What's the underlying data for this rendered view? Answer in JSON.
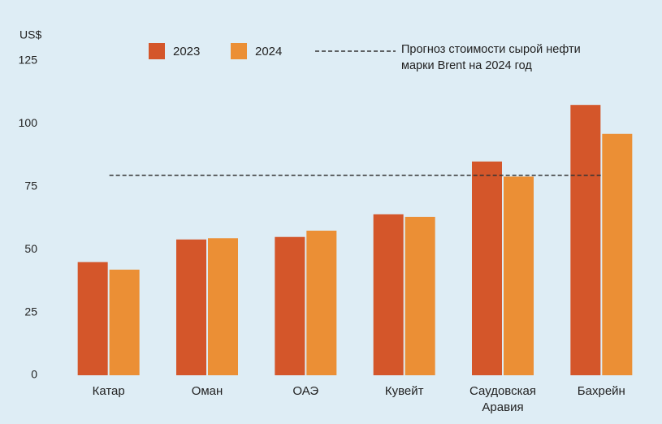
{
  "chart_data": {
    "type": "bar",
    "y_label": "US$",
    "categories": [
      "Катар",
      "Оман",
      "ОАЭ",
      "Кувейт",
      "Саудовская Аравия",
      "Бахрейн"
    ],
    "series": [
      {
        "name": "2023",
        "color": "#d4562a",
        "values": [
          45,
          54,
          55,
          64,
          85,
          107.5
        ]
      },
      {
        "name": "2024",
        "color": "#eb8f35",
        "values": [
          42,
          54.5,
          57.5,
          63,
          79,
          96
        ]
      }
    ],
    "reference_line": {
      "value": 79.5,
      "label": "Прогноз стоимости сырой нефти марки Brent на 2024 год",
      "color": "#333333"
    },
    "ylim": [
      0,
      125
    ],
    "yticks": [
      0,
      25,
      50,
      75,
      100,
      125
    ],
    "grid": false
  }
}
